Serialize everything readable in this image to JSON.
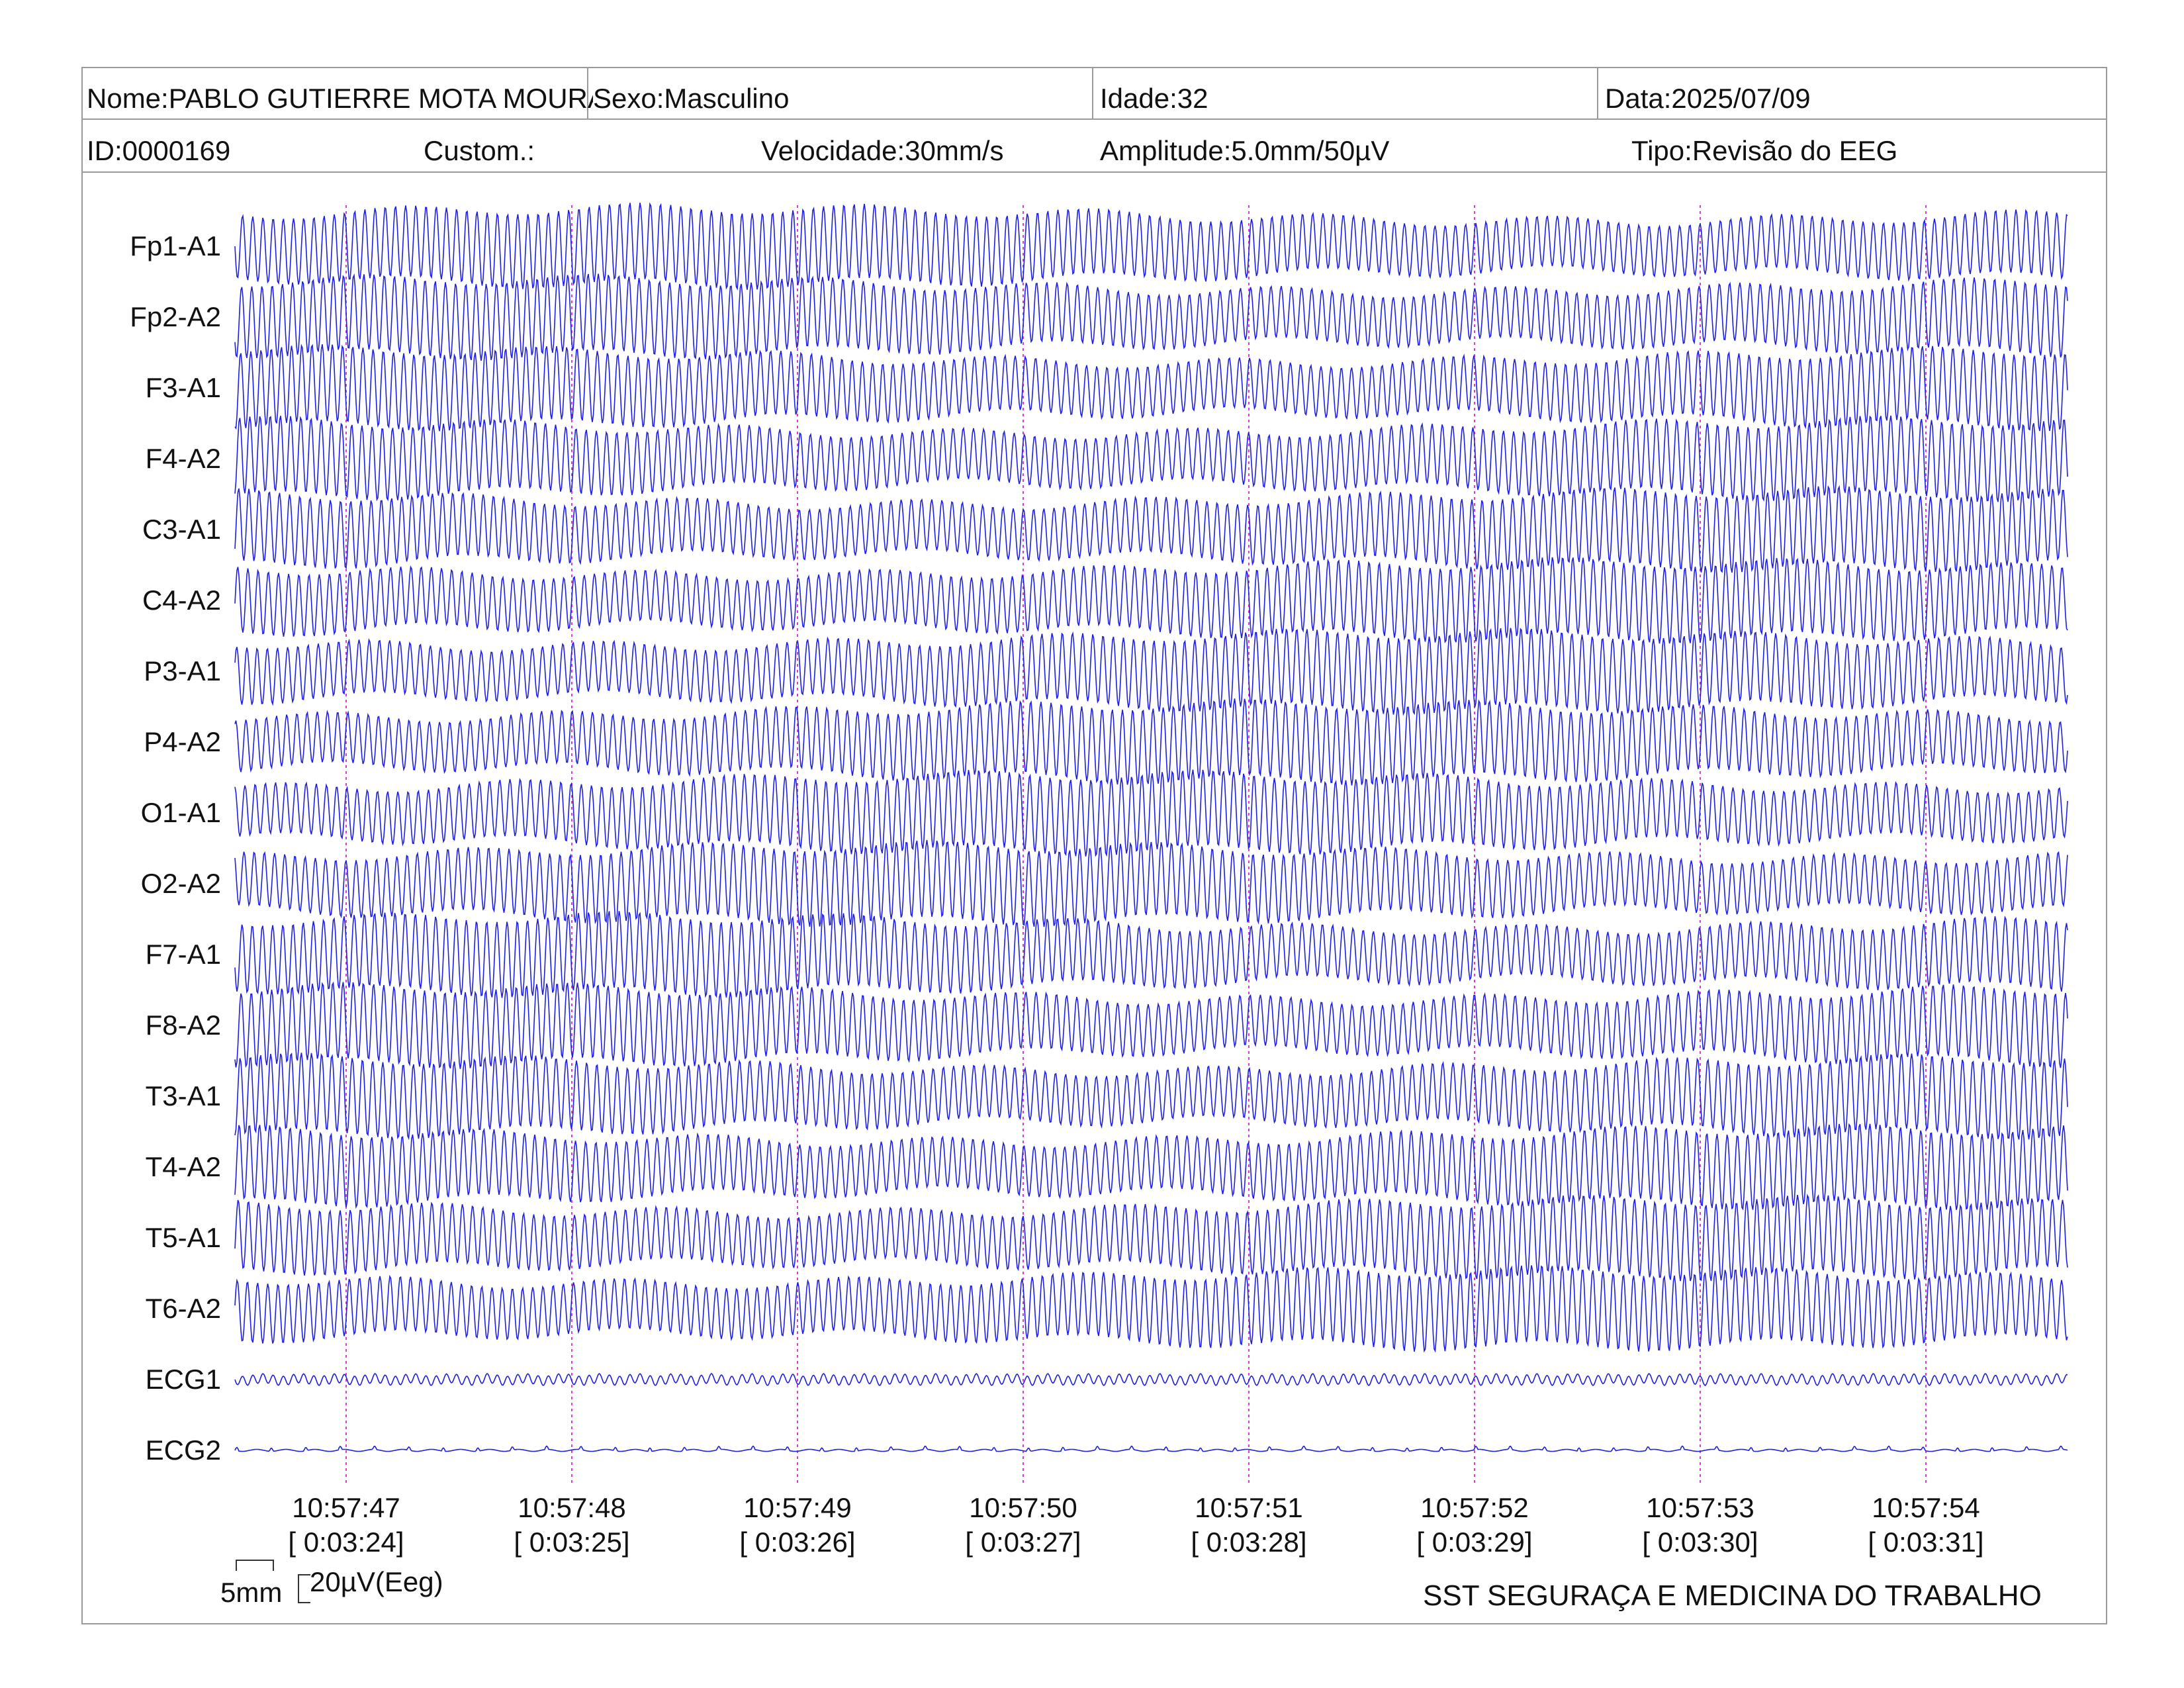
{
  "header": {
    "nome": "Nome:PABLO GUTIERRE MOTA MOURA",
    "sexo": "Sexo:Masculino",
    "idade": "Idade:32",
    "data": "Data:2025/07/09",
    "id": "ID:0000169",
    "custom": "Custom.:",
    "velocidade": "Velocidade:30mm/s",
    "amplitude": "Amplitude:5.0mm/50µV",
    "tipo": "Tipo:Revisão do EEG"
  },
  "channels": [
    {
      "label": "Fp1-A1",
      "kind": "eeg",
      "phase": 0.0
    },
    {
      "label": "Fp2-A2",
      "kind": "eeg",
      "phase": 0.6
    },
    {
      "label": "F3-A1",
      "kind": "eeg",
      "phase": 1.2
    },
    {
      "label": "F4-A2",
      "kind": "eeg",
      "phase": 1.8
    },
    {
      "label": "C3-A1",
      "kind": "eeg",
      "phase": 2.4
    },
    {
      "label": "C4-A2",
      "kind": "eeg",
      "phase": 3.0
    },
    {
      "label": "P3-A1",
      "kind": "eeg",
      "phase": 3.6
    },
    {
      "label": "P4-A2",
      "kind": "eeg",
      "phase": 4.2
    },
    {
      "label": "O1-A1",
      "kind": "eeg",
      "phase": 4.8
    },
    {
      "label": "O2-A2",
      "kind": "eeg",
      "phase": 5.4
    },
    {
      "label": "F7-A1",
      "kind": "eeg",
      "phase": 0.3
    },
    {
      "label": "F8-A2",
      "kind": "eeg",
      "phase": 0.9
    },
    {
      "label": "T3-A1",
      "kind": "eeg",
      "phase": 1.5
    },
    {
      "label": "T4-A2",
      "kind": "eeg",
      "phase": 2.1
    },
    {
      "label": "T5-A1",
      "kind": "eeg",
      "phase": 2.7
    },
    {
      "label": "T6-A2",
      "kind": "eeg",
      "phase": 3.3
    },
    {
      "label": "ECG1",
      "kind": "ecg1",
      "phase": 0.0
    },
    {
      "label": "ECG2",
      "kind": "ecg2",
      "phase": 0.0
    }
  ],
  "time_marks": [
    {
      "clock": "10:57:47",
      "elapsed": "[ 0:03:24]"
    },
    {
      "clock": "10:57:48",
      "elapsed": "[ 0:03:25]"
    },
    {
      "clock": "10:57:49",
      "elapsed": "[ 0:03:26]"
    },
    {
      "clock": "10:57:50",
      "elapsed": "[ 0:03:27]"
    },
    {
      "clock": "10:57:51",
      "elapsed": "[ 0:03:28]"
    },
    {
      "clock": "10:57:52",
      "elapsed": "[ 0:03:29]"
    },
    {
      "clock": "10:57:53",
      "elapsed": "[ 0:03:30]"
    },
    {
      "clock": "10:57:54",
      "elapsed": "[ 0:03:31]"
    }
  ],
  "scale": {
    "time_label": "5mm",
    "amp_label": "20µV(Eeg)"
  },
  "footer": {
    "org": "SST SEGURAÇA E MEDICINA DO TRABALHO"
  },
  "colors": {
    "trace": "#1f1fe0",
    "marker": "#d23fd2",
    "frame": "#9a9a9a"
  }
}
